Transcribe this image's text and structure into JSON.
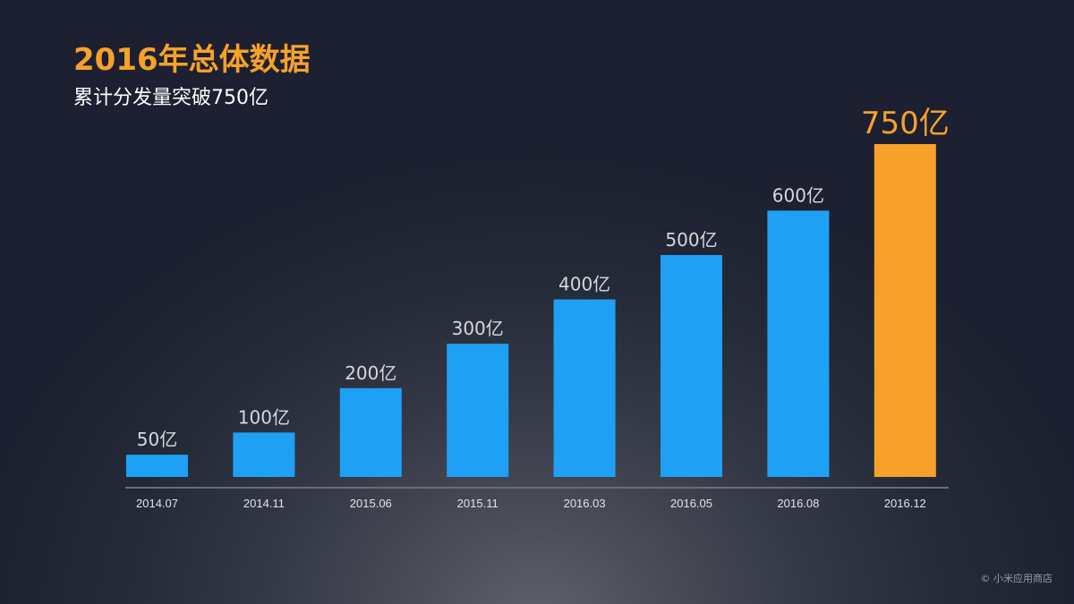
{
  "header": {
    "title": "2016年总体数据",
    "subtitle": "累计分发量突破750亿"
  },
  "footer": {
    "credit": "© 小米应用商店"
  },
  "colors": {
    "bar": "#1ea1f5",
    "highlight": "#f7a12a",
    "label": "#d6d8de",
    "tick": "#e2e4ea",
    "axis": "#6a6c76"
  },
  "chart_data": {
    "type": "bar",
    "categories": [
      "2014.07",
      "2014.11",
      "2015.06",
      "2015.11",
      "2016.03",
      "2016.05",
      "2016.08",
      "2016.12"
    ],
    "values": [
      50,
      100,
      200,
      300,
      400,
      500,
      600,
      750
    ],
    "data_labels": [
      "50亿",
      "100亿",
      "200亿",
      "300亿",
      "400亿",
      "500亿",
      "600亿",
      "750亿"
    ],
    "highlight_index": 7,
    "title": "2016年总体数据",
    "subtitle": "累计分发量突破750亿",
    "xlabel": "",
    "ylabel": "",
    "ylim": [
      0,
      750
    ],
    "grid": false,
    "legend": "none"
  }
}
